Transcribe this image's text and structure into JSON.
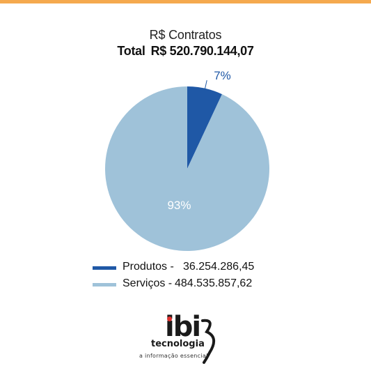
{
  "chart_data": {
    "type": "pie",
    "title": "R$ Contratos",
    "subtitle_label": "Total",
    "subtitle_value": "R$ 520.790.144,07",
    "slices": [
      {
        "name": "Produtos",
        "legend_label": "Produtos -",
        "value_text": "36.254.286,45",
        "value": 36254286.45,
        "percent": 7,
        "percent_label": "7%",
        "color": "#1f58a6"
      },
      {
        "name": "Serviços",
        "legend_label": "Serviços -",
        "value_text": "484.535.857,62",
        "value": 484535857.62,
        "percent": 93,
        "percent_label": "93%",
        "color": "#9fc2d9"
      }
    ],
    "label_colors": {
      "outside": "#1f58a6",
      "inside": "#ffffff"
    }
  },
  "colors": {
    "top_bar": "#f5a94e"
  },
  "logo": {
    "mark": "ibi",
    "wordmark": "tecnologia",
    "tagline": "a informação essencial",
    "accent": "#e0312f"
  }
}
